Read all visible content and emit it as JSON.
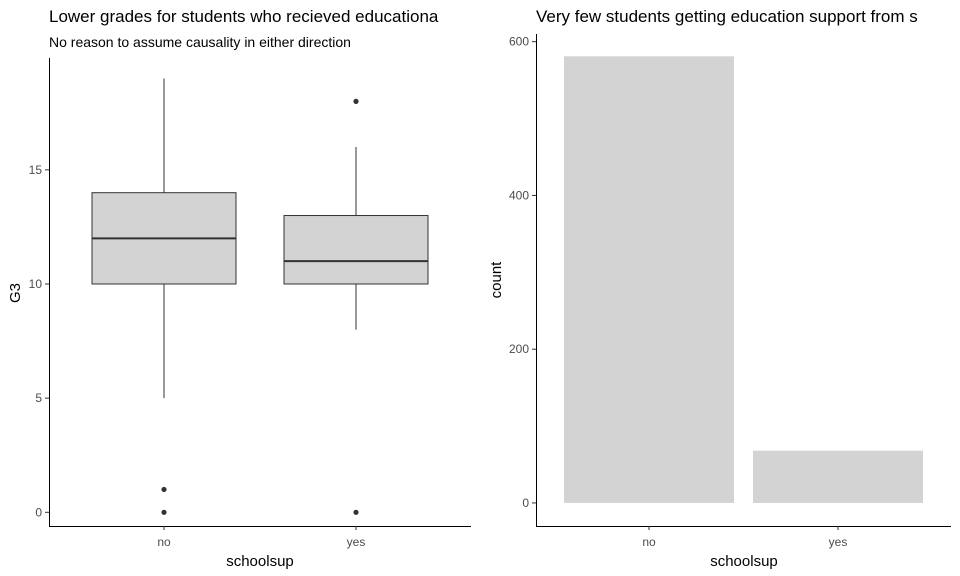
{
  "chart_data": [
    {
      "type": "boxplot",
      "title": "Lower grades for students who recieved educationa",
      "subtitle": "No reason to assume causality in either direction",
      "xlabel": "schoolsup",
      "ylabel": "G3",
      "categories": [
        "no",
        "yes"
      ],
      "boxes": [
        {
          "category": "no",
          "whisker_low": 5,
          "q1": 10,
          "median": 12,
          "q3": 14,
          "whisker_high": 19,
          "outliers": [
            1,
            0
          ]
        },
        {
          "category": "yes",
          "whisker_low": 8,
          "q1": 10,
          "median": 11,
          "q3": 13,
          "whisker_high": 16,
          "outliers": [
            18,
            0
          ]
        }
      ],
      "ylim": [
        -0.6,
        19.9
      ],
      "yticks": [
        0,
        5,
        10,
        15
      ],
      "ytick_labels": [
        "0",
        "5",
        "10",
        "15"
      ],
      "grid": false,
      "fill_color": "#d3d3d3"
    },
    {
      "type": "bar",
      "title": "Very few students getting education support from s",
      "xlabel": "schoolsup",
      "ylabel": "count",
      "categories": [
        "no",
        "yes"
      ],
      "values": [
        581,
        68
      ],
      "ylim": [
        -30,
        610
      ],
      "yticks": [
        0,
        200,
        400,
        600
      ],
      "ytick_labels": [
        "0",
        "200",
        "400",
        "600"
      ],
      "grid": false,
      "fill_color": "#d3d3d3"
    }
  ]
}
